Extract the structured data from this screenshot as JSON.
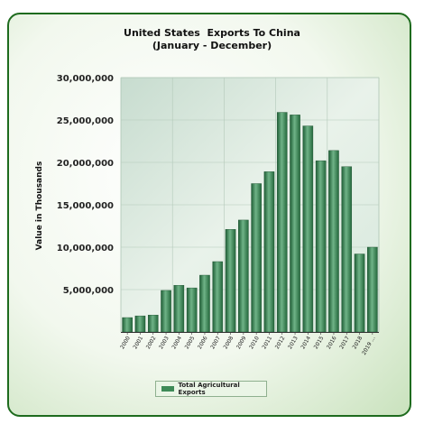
{
  "chart_data": {
    "type": "bar",
    "title": "United States  Exports To China",
    "subtitle": "(January - December)",
    "ylabel": "Value in Thousands",
    "ylim": [
      0,
      30000000
    ],
    "yticks": [
      "30,000,000",
      "25,000,000",
      "20,000,000",
      "15,000,000",
      "10,000,000",
      "5,000,000"
    ],
    "ytick_values": [
      30000000,
      25000000,
      20000000,
      15000000,
      10000000,
      5000000
    ],
    "categories": [
      "2000",
      "2001",
      "2002",
      "2003",
      "2004",
      "2005",
      "2006",
      "2007",
      "2008",
      "2009",
      "2010",
      "2011",
      "2012",
      "2013",
      "2014",
      "2015",
      "2016",
      "2017",
      "2018",
      "2019 ..."
    ],
    "series": [
      {
        "name": "Total Agricultural Exports",
        "values": [
          1700000,
          1900000,
          2000000,
          4900000,
          5500000,
          5200000,
          6700000,
          8300000,
          12100000,
          13200000,
          17500000,
          18900000,
          25900000,
          25600000,
          24300000,
          20200000,
          21400000,
          19500000,
          9200000,
          10000000
        ]
      }
    ],
    "legend": "bottom-center",
    "grid": true
  },
  "colors": {
    "bar": "#3e8a57",
    "plot_bg": "#cfe3d8",
    "frame_border": "#1e6b1e"
  }
}
